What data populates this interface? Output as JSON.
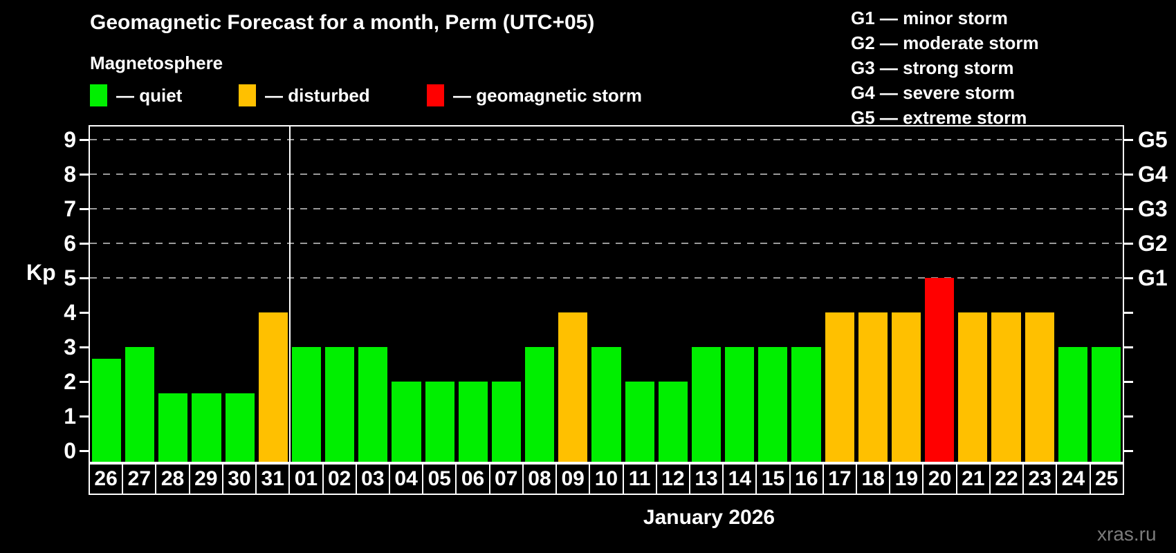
{
  "colors": {
    "quiet": "#00ef00",
    "disturbed": "#ffc000",
    "storm": "#ff0000",
    "grid": "#9a9a9a",
    "axis": "#ffffff",
    "watermark": "#7c7c7c",
    "background": "#000000"
  },
  "header": {
    "title": "Geomagnetic Forecast for a month, Perm (UTC+05)",
    "subtitle": "Magnetosphere"
  },
  "legend": {
    "items": [
      {
        "label": "— quiet",
        "status": "quiet"
      },
      {
        "label": "— disturbed",
        "status": "disturbed"
      },
      {
        "label": "— geomagnetic storm",
        "status": "storm"
      }
    ]
  },
  "g_legend": {
    "lines": [
      "G1 — minor storm",
      "G2 — moderate storm",
      "G3 — strong storm",
      "G4 — severe storm",
      "G5 — extreme storm"
    ]
  },
  "axes": {
    "y_label": "Kp",
    "y_ticks": [
      0,
      1,
      2,
      3,
      4,
      5,
      6,
      7,
      8,
      9
    ],
    "right_labels": [
      {
        "label": "G1",
        "kp": 5
      },
      {
        "label": "G2",
        "kp": 6
      },
      {
        "label": "G3",
        "kp": 7
      },
      {
        "label": "G4",
        "kp": 8
      },
      {
        "label": "G5",
        "kp": 9
      }
    ]
  },
  "footer": {
    "month_label": "January 2026",
    "watermark": "xras.ru"
  },
  "chart_data": {
    "type": "bar",
    "title": "Geomagnetic Forecast for a month, Perm (UTC+05)",
    "xlabel": "January 2026",
    "ylabel": "Kp",
    "ylim": [
      0,
      9
    ],
    "grid_kp": [
      5,
      6,
      7,
      8,
      9
    ],
    "legend_position": "top",
    "month_boundary_index": 6,
    "categories": [
      "26",
      "27",
      "28",
      "29",
      "30",
      "31",
      "01",
      "02",
      "03",
      "04",
      "05",
      "06",
      "07",
      "08",
      "09",
      "10",
      "11",
      "12",
      "13",
      "14",
      "15",
      "16",
      "17",
      "18",
      "19",
      "20",
      "21",
      "22",
      "23",
      "24",
      "25"
    ],
    "values": [
      2.67,
      3,
      1.67,
      1.67,
      1.67,
      4,
      3,
      3,
      3,
      2,
      2,
      2,
      2,
      3,
      4,
      3,
      2,
      2,
      3,
      3,
      3,
      3,
      4,
      4,
      4,
      5,
      4,
      4,
      4,
      3,
      3
    ],
    "statuses": [
      "quiet",
      "quiet",
      "quiet",
      "quiet",
      "quiet",
      "disturbed",
      "quiet",
      "quiet",
      "quiet",
      "quiet",
      "quiet",
      "quiet",
      "quiet",
      "quiet",
      "disturbed",
      "quiet",
      "quiet",
      "quiet",
      "quiet",
      "quiet",
      "quiet",
      "quiet",
      "disturbed",
      "disturbed",
      "disturbed",
      "storm",
      "disturbed",
      "disturbed",
      "disturbed",
      "quiet",
      "quiet"
    ]
  }
}
